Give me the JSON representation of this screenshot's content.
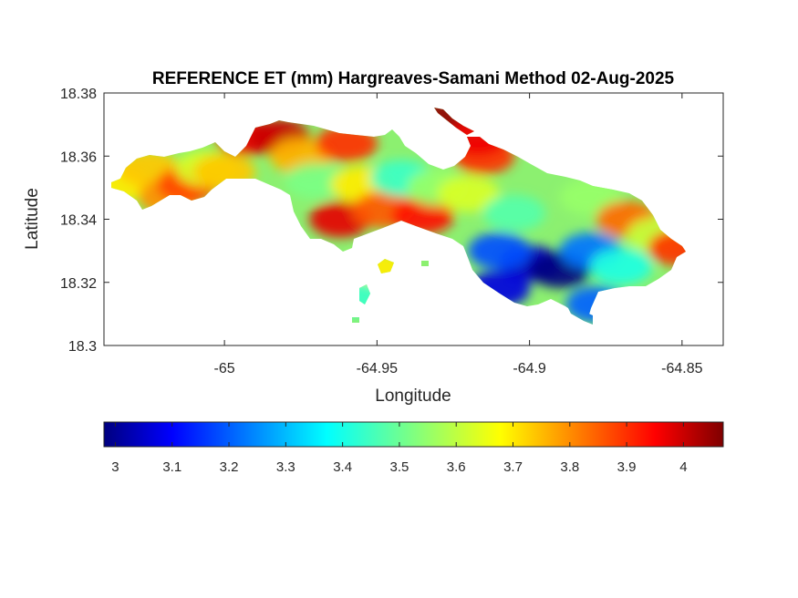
{
  "chart_data": {
    "type": "heatmap",
    "title": "REFERENCE ET (mm) Hargreaves-Samani Method  02-Aug-2025",
    "xlabel": "Longitude",
    "ylabel": "Latitude",
    "xlim": [
      -65.0395,
      -64.8365
    ],
    "ylim": [
      18.3,
      18.38
    ],
    "x_ticks": [
      -65,
      -64.95,
      -64.9,
      -64.85
    ],
    "x_tick_labels": [
      "-65",
      "-64.95",
      "-64.9",
      "-64.85"
    ],
    "y_ticks": [
      18.3,
      18.32,
      18.34,
      18.36,
      18.38
    ],
    "y_tick_labels": [
      "18.3",
      "18.32",
      "18.34",
      "18.36",
      "18.38"
    ],
    "colorbar": {
      "colormap": "jet",
      "range": [
        2.98,
        4.07
      ],
      "ticks": [
        3,
        3.1,
        3.2,
        3.3,
        3.4,
        3.5,
        3.6,
        3.7,
        3.8,
        3.9,
        4
      ],
      "tick_labels": [
        "3",
        "3.1",
        "3.2",
        "3.3",
        "3.4",
        "3.5",
        "3.6",
        "3.7",
        "3.8",
        "3.9",
        "4"
      ]
    },
    "regions": [
      {
        "lon": -65.035,
        "lat": 18.351,
        "value": 3.68
      },
      {
        "lon": -65.025,
        "lat": 18.356,
        "value": 3.72
      },
      {
        "lon": -65.018,
        "lat": 18.347,
        "value": 3.78
      },
      {
        "lon": -65.012,
        "lat": 18.351,
        "value": 3.86
      },
      {
        "lon": -65.006,
        "lat": 18.356,
        "value": 3.62
      },
      {
        "lon": -65.0,
        "lat": 18.355,
        "value": 3.72
      },
      {
        "lon": -64.993,
        "lat": 18.366,
        "value": 3.95
      },
      {
        "lon": -64.982,
        "lat": 18.366,
        "value": 3.99
      },
      {
        "lon": -64.975,
        "lat": 18.36,
        "value": 3.74
      },
      {
        "lon": -64.97,
        "lat": 18.352,
        "value": 3.52
      },
      {
        "lon": -64.962,
        "lat": 18.34,
        "value": 3.96
      },
      {
        "lon": -64.96,
        "lat": 18.364,
        "value": 3.88
      },
      {
        "lon": -64.955,
        "lat": 18.351,
        "value": 3.68
      },
      {
        "lon": -64.948,
        "lat": 18.343,
        "value": 3.84
      },
      {
        "lon": -64.942,
        "lat": 18.353,
        "value": 3.45
      },
      {
        "lon": -64.935,
        "lat": 18.341,
        "value": 3.92
      },
      {
        "lon": -64.93,
        "lat": 18.35,
        "value": 3.55
      },
      {
        "lon": -64.92,
        "lat": 18.348,
        "value": 3.62
      },
      {
        "lon": -64.915,
        "lat": 18.36,
        "value": 3.88
      },
      {
        "lon": -64.905,
        "lat": 18.342,
        "value": 3.48
      },
      {
        "lon": -64.9,
        "lat": 18.326,
        "value": 3.06
      },
      {
        "lon": -64.89,
        "lat": 18.324,
        "value": 2.98
      },
      {
        "lon": -64.88,
        "lat": 18.33,
        "value": 3.24
      },
      {
        "lon": -64.88,
        "lat": 18.347,
        "value": 3.55
      },
      {
        "lon": -64.87,
        "lat": 18.325,
        "value": 3.42
      },
      {
        "lon": -64.868,
        "lat": 18.34,
        "value": 3.82
      },
      {
        "lon": -64.858,
        "lat": 18.335,
        "value": 3.6
      },
      {
        "lon": -64.851,
        "lat": 18.331,
        "value": 3.88
      },
      {
        "lon": -64.91,
        "lat": 18.33,
        "value": 3.2
      },
      {
        "lon": -64.91,
        "lat": 18.318,
        "value": 3.08
      },
      {
        "lon": -64.878,
        "lat": 18.313,
        "value": 3.22
      },
      {
        "lon": -64.928,
        "lat": 18.372,
        "value": 4.05
      },
      {
        "lon": -64.917,
        "lat": 18.366,
        "value": 3.95
      },
      {
        "lon": -64.95,
        "lat": 18.324,
        "value": 3.68
      },
      {
        "lon": -64.957,
        "lat": 18.315,
        "value": 3.45
      }
    ]
  }
}
